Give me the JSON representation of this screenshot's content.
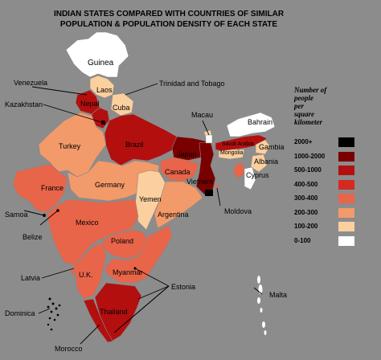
{
  "title_line1": "INDIAN STATES COMPARED WITH COUNTRIES OF SIMILAR",
  "title_line2": "POPULATION & POPULATION DENSITY OF EACH STATE",
  "legend": {
    "title": [
      "Number of",
      "people",
      "per",
      "square",
      "kilometer"
    ],
    "items": [
      {
        "label": "2000+",
        "color": "#000000"
      },
      {
        "label": "1000-2000",
        "color": "#7a0000"
      },
      {
        "label": "500-1000",
        "color": "#b30f0f"
      },
      {
        "label": "400-500",
        "color": "#d42a22"
      },
      {
        "label": "300-400",
        "color": "#e8654a"
      },
      {
        "label": "200-300",
        "color": "#f39a6a"
      },
      {
        "label": "100-200",
        "color": "#fbd09e"
      },
      {
        "label": "0-100",
        "color": "#ffffff"
      }
    ]
  },
  "regions": {
    "guinea": "Guinea",
    "laos": "Laos",
    "cuba": "Cuba",
    "nepal": "Nepal",
    "brazil": "Brazil",
    "turkey": "Turkey",
    "japan": "Japan",
    "canada": "Canada",
    "vietnam": "Vietnam",
    "france": "France",
    "germany": "Germany",
    "yemen": "Yemen",
    "argentina": "Argentina",
    "mexico": "Mexico",
    "poland": "Poland",
    "uk": "U.K.",
    "myanmar": "Myanmar",
    "thailand": "Thailand",
    "bahrain": "Bahrain",
    "saudi_arabia": "Saudi Arabia",
    "mongolia": "Mongolia",
    "gambia": "Gambia",
    "albania": "Albania",
    "cyprus": "Cyprus"
  },
  "callouts": {
    "venezuela": "Venezuela",
    "kazakhstan": "Kazakhstan",
    "trinidad": "Trinidad and Tobago",
    "macau": "Macau",
    "moldova": "Moldova",
    "samoa": "Samoa",
    "belize": "Belize",
    "latvia": "Latvia",
    "estonia": "Estonia",
    "malta": "Malta",
    "dominica": "Dominica",
    "morocco": "Morocco"
  }
}
